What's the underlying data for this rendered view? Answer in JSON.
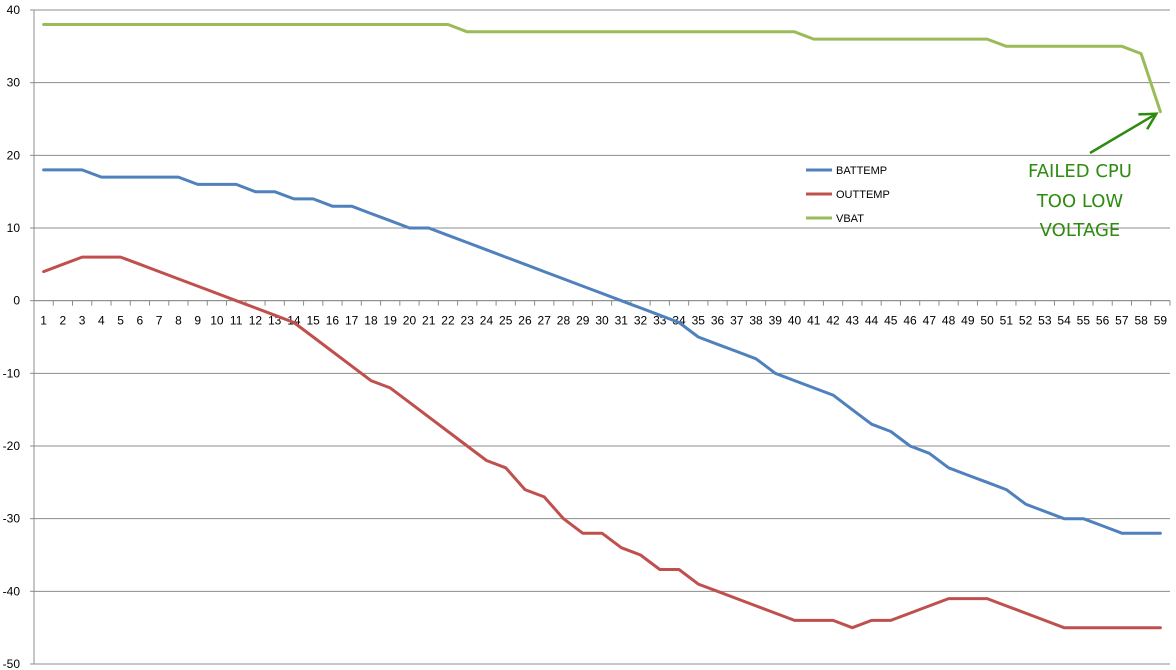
{
  "chart_data": {
    "type": "line",
    "title": "",
    "xlabel": "",
    "ylabel": "",
    "ylim": [
      -50,
      40
    ],
    "ytick_step": 10,
    "grid": "horizontal",
    "legend_placement": "center-right",
    "x": [
      1,
      2,
      3,
      4,
      5,
      6,
      7,
      8,
      9,
      10,
      11,
      12,
      13,
      14,
      15,
      16,
      17,
      18,
      19,
      20,
      21,
      22,
      23,
      24,
      25,
      26,
      27,
      28,
      29,
      30,
      31,
      32,
      33,
      34,
      35,
      36,
      37,
      38,
      39,
      40,
      41,
      42,
      43,
      44,
      45,
      46,
      47,
      48,
      49,
      50,
      51,
      52,
      53,
      54,
      55,
      56,
      57,
      58,
      59
    ],
    "series": [
      {
        "name": "BATTEMP",
        "color": "#4f81bd",
        "values": [
          18,
          18,
          18,
          17,
          17,
          17,
          17,
          17,
          16,
          16,
          16,
          15,
          15,
          14,
          14,
          13,
          13,
          12,
          11,
          10,
          10,
          9,
          8,
          7,
          6,
          5,
          4,
          3,
          2,
          1,
          0,
          -1,
          -2,
          -3,
          -5,
          -6,
          -7,
          -8,
          -10,
          -11,
          -12,
          -13,
          -15,
          -17,
          -18,
          -20,
          -21,
          -23,
          -24,
          -25,
          -26,
          -28,
          -29,
          -30,
          -30,
          -31,
          -32,
          -32,
          -32
        ]
      },
      {
        "name": "OUTTEMP",
        "color": "#c0504d",
        "values": [
          4,
          5,
          6,
          6,
          6,
          5,
          4,
          3,
          2,
          1,
          0,
          -1,
          -2,
          -3,
          -5,
          -7,
          -9,
          -11,
          -12,
          -14,
          -16,
          -18,
          -20,
          -22,
          -23,
          -26,
          -27,
          -30,
          -32,
          -32,
          -34,
          -35,
          -37,
          -37,
          -39,
          -40,
          -41,
          -42,
          -43,
          -44,
          -44,
          -44,
          -45,
          -44,
          -44,
          -43,
          -42,
          -41,
          -41,
          -41,
          -42,
          -43,
          -44,
          -45,
          -45,
          -45,
          -45,
          -45,
          -45
        ]
      },
      {
        "name": "VBAT",
        "color": "#9bbb59",
        "values": [
          38,
          38,
          38,
          38,
          38,
          38,
          38,
          38,
          38,
          38,
          38,
          38,
          38,
          38,
          38,
          38,
          38,
          38,
          38,
          38,
          38,
          38,
          37,
          37,
          37,
          37,
          37,
          37,
          37,
          37,
          37,
          37,
          37,
          37,
          37,
          37,
          37,
          37,
          37,
          37,
          36,
          36,
          36,
          36,
          36,
          36,
          36,
          36,
          36,
          36,
          35,
          35,
          35,
          35,
          35,
          35,
          35,
          34,
          26
        ]
      }
    ],
    "annotation": {
      "lines": [
        "FAILED CPU",
        "TOO LOW",
        "VOLTAGE"
      ],
      "color": "#2e8b10",
      "points_to": {
        "x": 59,
        "y": 26
      }
    }
  }
}
